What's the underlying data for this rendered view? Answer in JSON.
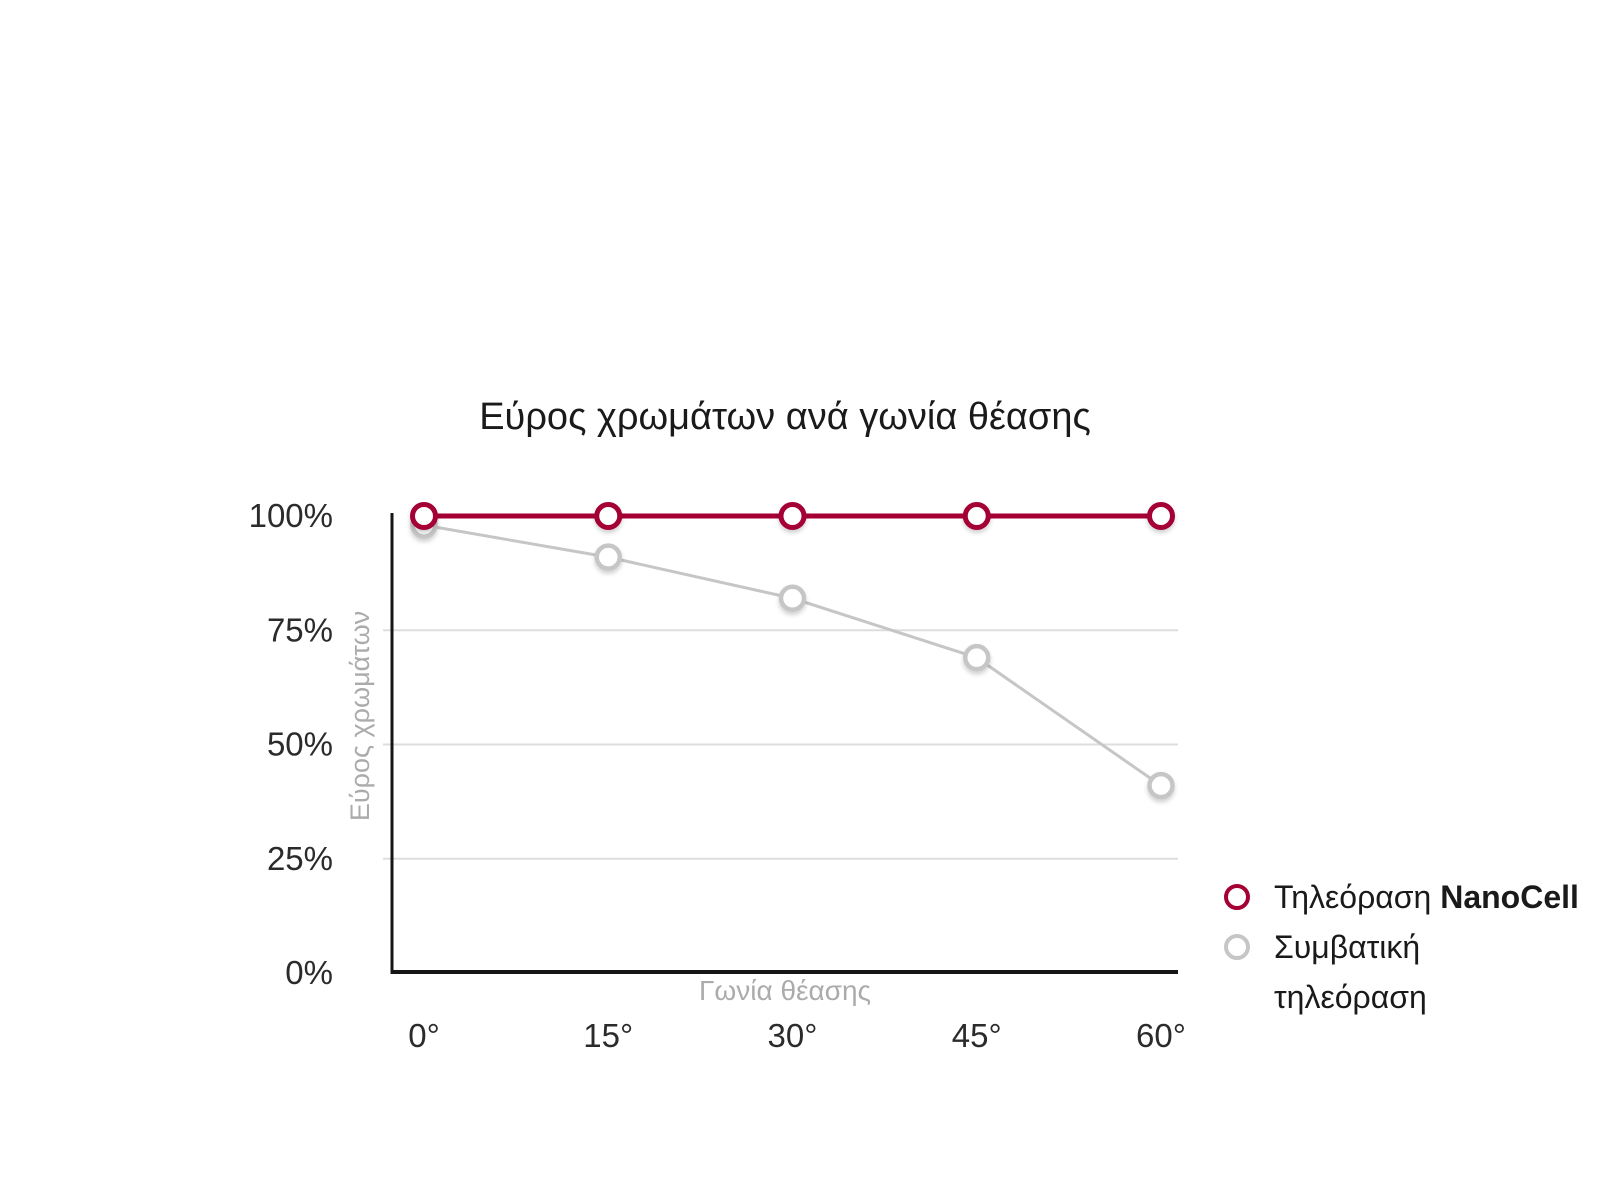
{
  "colors": {
    "background": "#FFFFFF",
    "accent": "#A50034",
    "muted_series": "#C6C6C6",
    "gridline": "#DEDEDE",
    "axis": "#161616",
    "tick_label": "#2B2B2B",
    "axis_title": "#ABABAB",
    "title": "#1A1A1A"
  },
  "chart_data": {
    "type": "line",
    "title": "Εύρος χρωμάτων ανά γωνία θέασης",
    "xlabel": "Γωνία θέασης",
    "ylabel": "Εύρος χρωμάτων",
    "categories": [
      "0°",
      "15°",
      "30°",
      "45°",
      "60°"
    ],
    "x_values_deg": [
      0,
      15,
      30,
      45,
      60
    ],
    "ylim": [
      0,
      100
    ],
    "y_ticks": [
      {
        "value": 100,
        "label": "100%"
      },
      {
        "value": 75,
        "label": "75%"
      },
      {
        "value": 50,
        "label": "50%"
      },
      {
        "value": 25,
        "label": "25%"
      },
      {
        "value": 0,
        "label": "0%"
      }
    ],
    "gridline_values": [
      75,
      50,
      25
    ],
    "grid": "horizontal-only",
    "legend_position": "outside-bottom-right",
    "series": [
      {
        "name": "Τηλεόραση NanoCell",
        "name_parts": {
          "regular": "Τηλεόραση",
          "bold": "NanoCell"
        },
        "color": "#A50034",
        "marker": "open-circle",
        "line_width": 5,
        "marker_stroke": 5,
        "values": [
          100,
          100,
          100,
          100,
          100
        ]
      },
      {
        "name": "Συμβατική τηλεόραση",
        "name_parts": {
          "regular": "Συμβατική τηλεόραση",
          "bold": ""
        },
        "color": "#C6C6C6",
        "marker": "open-circle",
        "line_width": 3,
        "marker_stroke": 4.5,
        "values": [
          98,
          91,
          82,
          69,
          41
        ]
      }
    ]
  }
}
